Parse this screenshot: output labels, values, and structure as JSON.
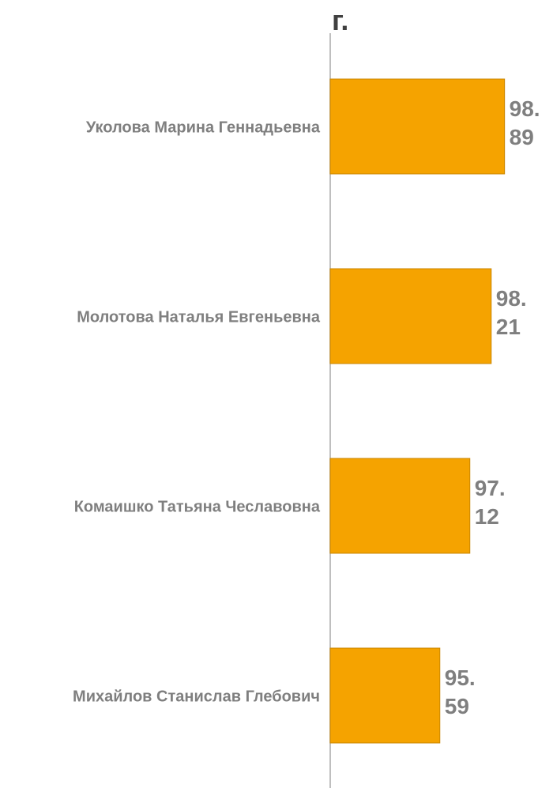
{
  "chart_data": {
    "type": "barh",
    "title": "г.",
    "categories": [
      "Уколова Марина Геннадьевна",
      "Молотова Наталья Евгеньевна",
      "Комаишко Татьяна Чеславовна",
      "Михайлов Станислав Глебович"
    ],
    "values": [
      98.89,
      98.21,
      97.12,
      95.59
    ],
    "color": "#f5a300",
    "xlim": [
      90,
      101.2
    ]
  }
}
